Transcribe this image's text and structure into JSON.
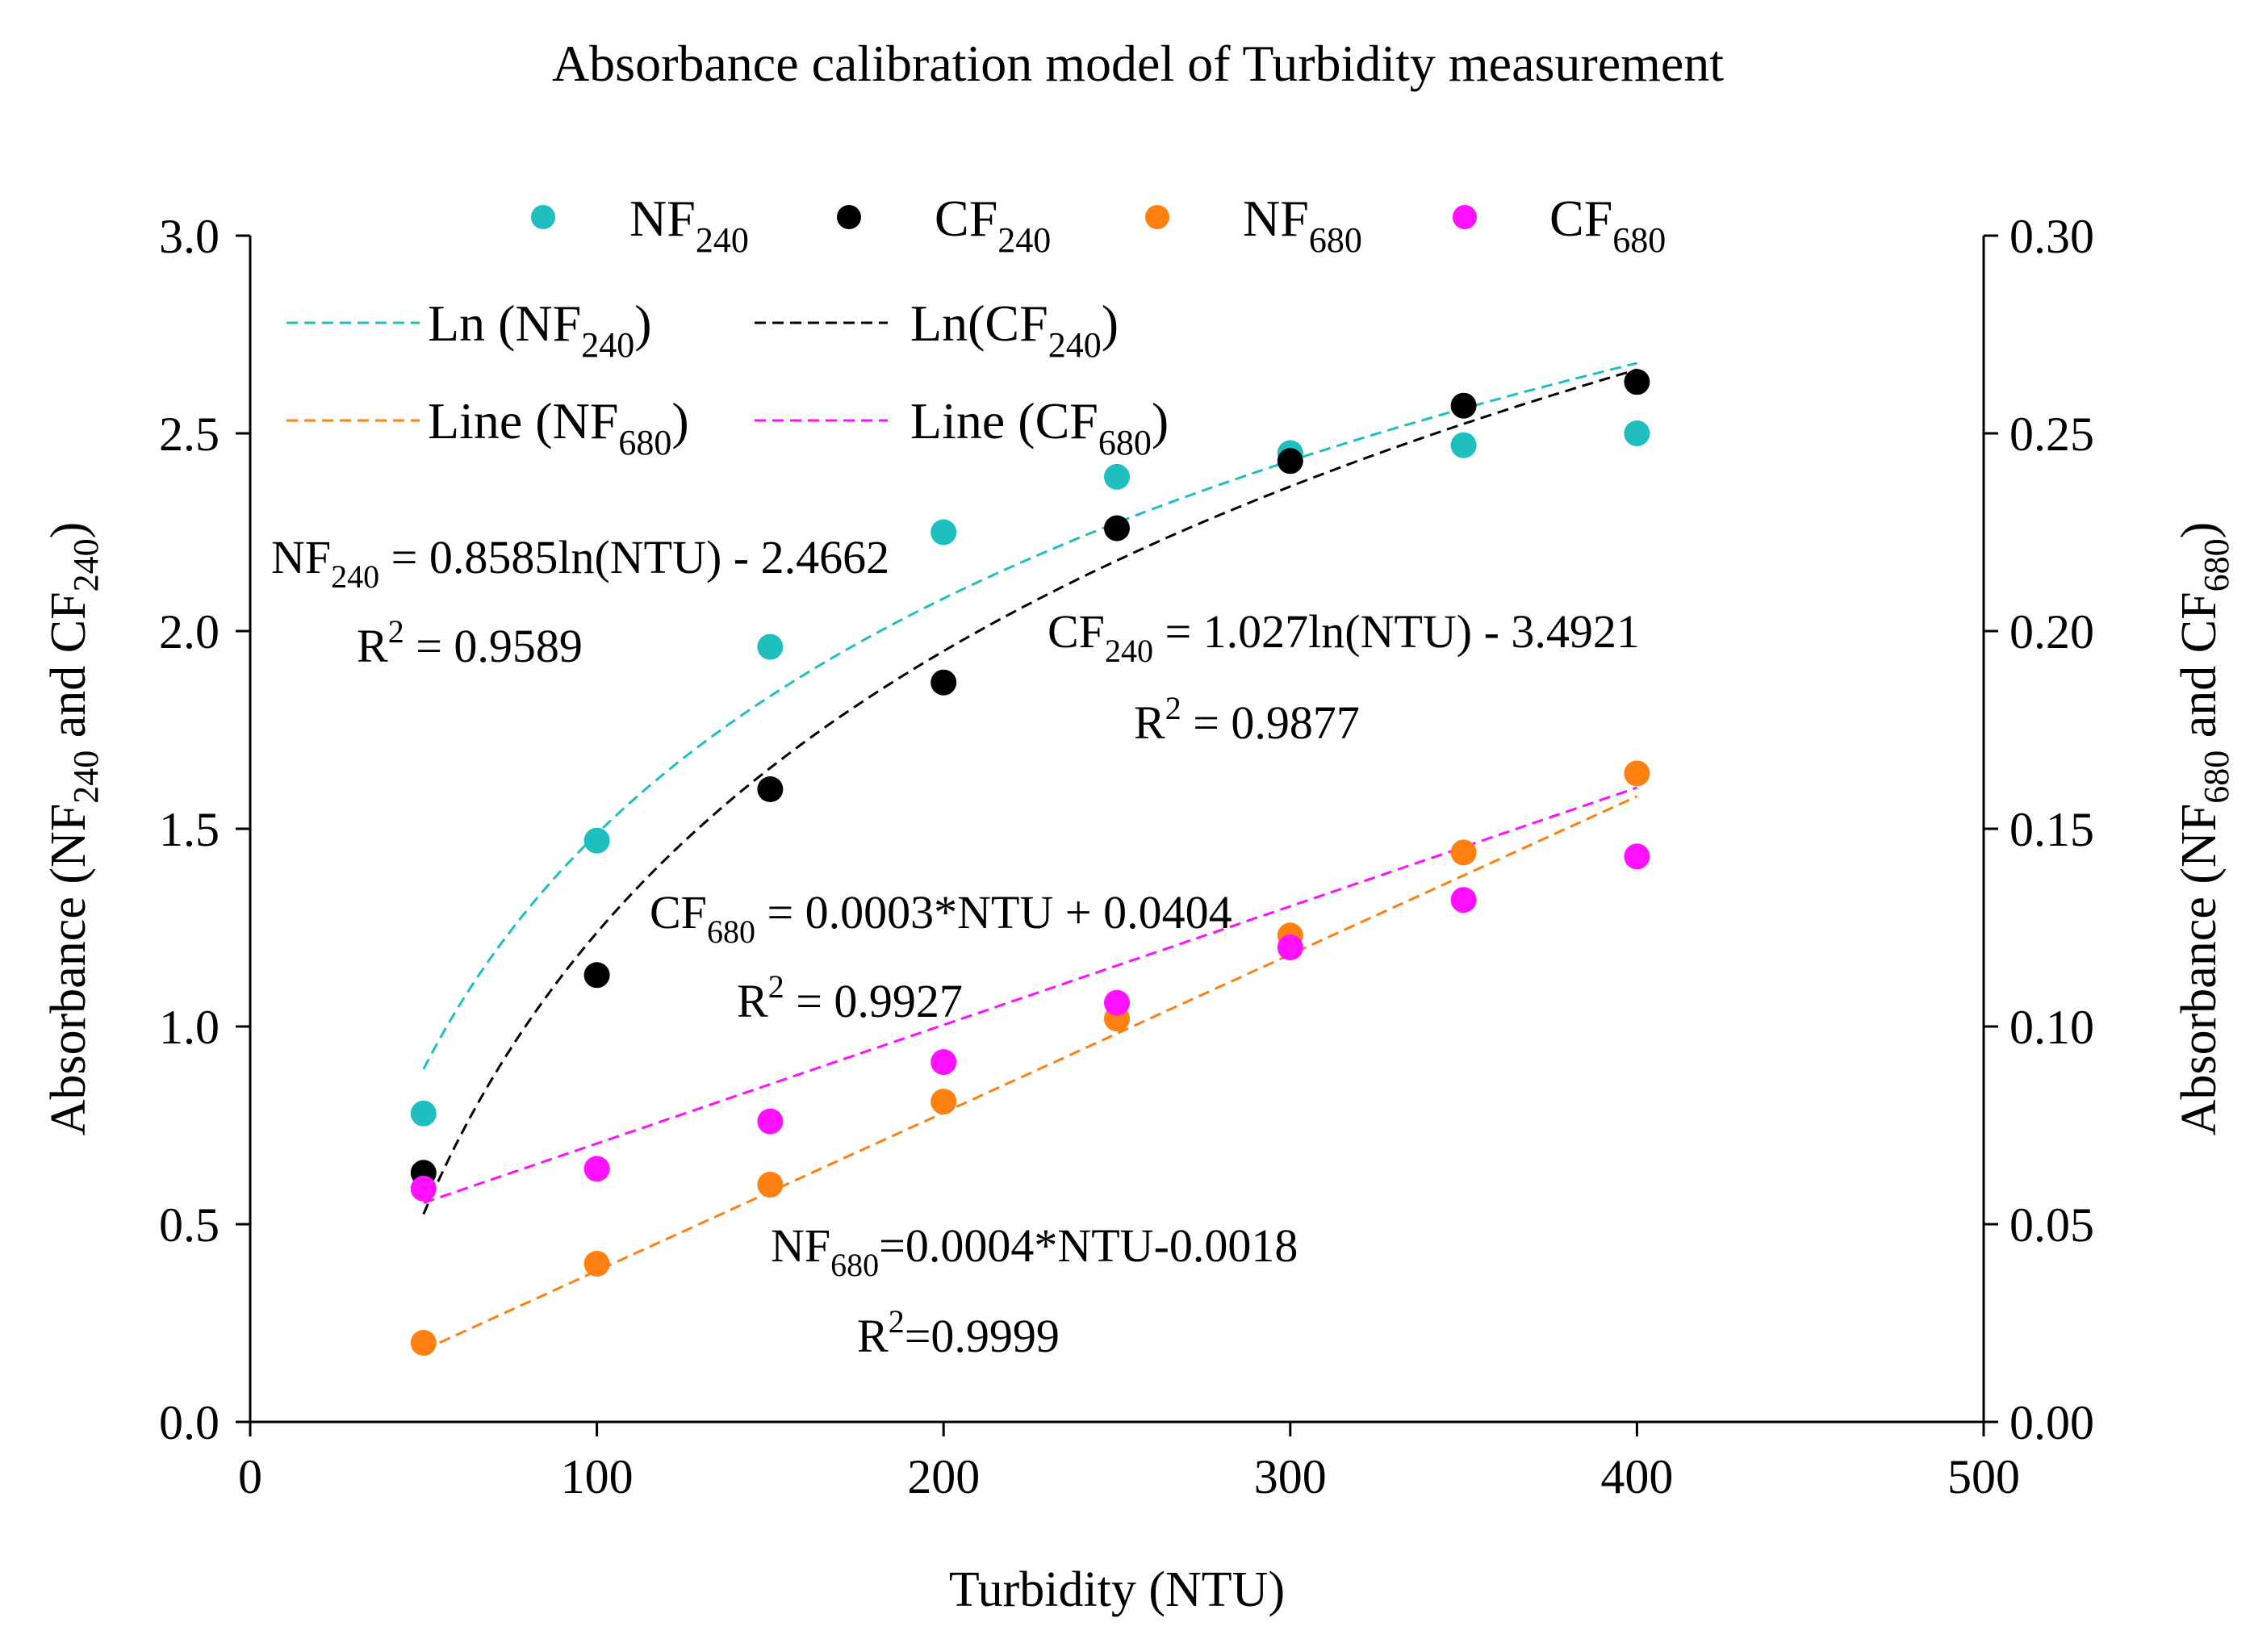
{
  "chart_data": {
    "type": "scatter",
    "title": "Absorbance calibration model of Turbidity measurement",
    "xlabel": "Turbidity (NTU)",
    "ylabel_left": {
      "main": "Absorbance (NF",
      "sub1": "240",
      "mid": " and CF",
      "sub2": "240",
      "end": ")"
    },
    "ylabel_right": {
      "main": "Absorbance (NF",
      "sub1": "680",
      "mid": " and CF",
      "sub2": "680",
      "end": ")"
    },
    "xlim": [
      0,
      500
    ],
    "ylim_left": [
      0,
      3.0
    ],
    "ylim_right": [
      0,
      0.3
    ],
    "x_ticks": [
      "0",
      "100",
      "200",
      "300",
      "400",
      "500"
    ],
    "y_ticks_left": [
      "0.0",
      "0.5",
      "1.0",
      "1.5",
      "2.0",
      "2.5",
      "3.0"
    ],
    "y_ticks_right": [
      "0.00",
      "0.05",
      "0.10",
      "0.15",
      "0.20",
      "0.25",
      "0.30"
    ],
    "series": [
      {
        "name": "NF240",
        "label_main": "NF",
        "label_sub": "240",
        "axis": "left",
        "color": "#1fbfbf",
        "x": [
          50,
          100,
          150,
          200,
          250,
          300,
          350,
          400
        ],
        "y": [
          0.78,
          1.47,
          1.96,
          2.25,
          2.39,
          2.45,
          2.47,
          2.5
        ]
      },
      {
        "name": "CF240",
        "label_main": "CF",
        "label_sub": "240",
        "axis": "left",
        "color": "#000000",
        "x": [
          50,
          100,
          150,
          200,
          250,
          300,
          350,
          400
        ],
        "y": [
          0.63,
          1.13,
          1.6,
          1.87,
          2.26,
          2.43,
          2.57,
          2.63
        ]
      },
      {
        "name": "NF680",
        "label_main": "NF",
        "label_sub": "680",
        "axis": "right",
        "color": "#ff8010",
        "x": [
          50,
          100,
          150,
          200,
          250,
          300,
          350,
          400
        ],
        "y": [
          0.02,
          0.04,
          0.06,
          0.081,
          0.102,
          0.123,
          0.144,
          0.164
        ]
      },
      {
        "name": "CF680",
        "label_main": "CF",
        "label_sub": "680",
        "axis": "right",
        "color": "#ff10ff",
        "x": [
          50,
          100,
          150,
          200,
          250,
          300,
          350,
          400
        ],
        "y": [
          0.059,
          0.064,
          0.076,
          0.091,
          0.106,
          0.12,
          0.132,
          0.143
        ]
      }
    ],
    "fits": [
      {
        "name": "Ln (NF240)",
        "label_main": "Ln (NF",
        "label_sub": "240",
        "label_end": ")",
        "color": "#1fbfbf",
        "type": "ln",
        "a": 0.8585,
        "b": -2.4662,
        "axis": "left"
      },
      {
        "name": "Ln(CF240)",
        "label_main": "Ln(CF",
        "label_sub": "240",
        "label_end": ")",
        "color": "#000000",
        "type": "ln",
        "a": 1.027,
        "b": -3.4921,
        "axis": "left"
      },
      {
        "name": "Line (NF680)",
        "label_main": "Line (NF",
        "label_sub": "680",
        "label_end": ")",
        "color": "#ff8010",
        "type": "linear",
        "a": 0.0004,
        "b": -0.0018,
        "axis": "right"
      },
      {
        "name": "Line (CF680)",
        "label_main": "Line (CF",
        "label_sub": "680",
        "label_end": ")",
        "color": "#ff10ff",
        "type": "linear",
        "a": 0.0003,
        "b": 0.0404,
        "axis": "right"
      }
    ],
    "annotations": {
      "nf240_eq": {
        "pre": "NF",
        "sub": "240",
        "post": " = 0.8585ln(NTU) - 2.4662"
      },
      "nf240_r2": {
        "pre": "R",
        "sup": "2",
        "post": " = 0.9589"
      },
      "cf240_eq": {
        "pre": "CF",
        "sub": "240",
        "post": " = 1.027ln(NTU) - 3.4921"
      },
      "cf240_r2": {
        "pre": "R",
        "sup": "2",
        "post": " = 0.9877"
      },
      "cf680_eq": {
        "pre": "CF",
        "sub": "680",
        "post": " = 0.0003*NTU + 0.0404"
      },
      "cf680_r2": {
        "pre": "R",
        "sup": "2",
        "post": " = 0.9927"
      },
      "nf680_eq": {
        "pre": "NF",
        "sub": "680",
        "post": "=0.0004*NTU-0.0018"
      },
      "nf680_r2": {
        "pre": "R",
        "sup": "2",
        "post": "=0.9999"
      }
    }
  }
}
